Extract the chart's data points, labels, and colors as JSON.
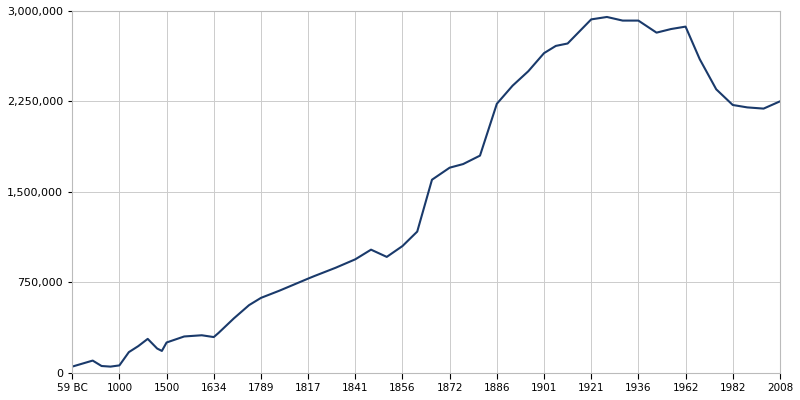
{
  "line_color": "#1a3a6b",
  "background_color": "#ffffff",
  "grid_color": "#cccccc",
  "x_tick_labels": [
    "59 BC",
    "1000",
    "1500",
    "1634",
    "1789",
    "1817",
    "1841",
    "1856",
    "1872",
    "1886",
    "1901",
    "1921",
    "1936",
    "1962",
    "1982",
    "2008"
  ],
  "x_tick_years": [
    -59,
    1000,
    1500,
    1634,
    1789,
    1817,
    1841,
    1856,
    1872,
    1886,
    1901,
    1921,
    1936,
    1962,
    1982,
    2008
  ],
  "y_tick_values": [
    0,
    750000,
    1500000,
    2250000,
    3000000
  ],
  "data_years": [
    -59,
    400,
    600,
    800,
    1000,
    1100,
    1200,
    1300,
    1400,
    1450,
    1500,
    1550,
    1600,
    1634,
    1650,
    1700,
    1750,
    1789,
    1800,
    1817,
    1820,
    1831,
    1841,
    1846,
    1851,
    1856,
    1861,
    1866,
    1872,
    1876,
    1881,
    1886,
    1891,
    1896,
    1901,
    1906,
    1911,
    1921,
    1926,
    1931,
    1936,
    1946,
    1954,
    1962,
    1968,
    1975,
    1982,
    1990,
    1999,
    2008
  ],
  "data_values": [
    50000,
    100000,
    55000,
    50000,
    60000,
    170000,
    220000,
    280000,
    200000,
    180000,
    250000,
    300000,
    310000,
    295000,
    330000,
    450000,
    560000,
    620000,
    680000,
    780000,
    800000,
    870000,
    940000,
    1020000,
    960000,
    1050000,
    1170000,
    1600000,
    1700000,
    1730000,
    1800000,
    2230000,
    2380000,
    2500000,
    2650000,
    2710000,
    2730000,
    2930000,
    2950000,
    2920000,
    2920000,
    2820000,
    2850000,
    2870000,
    2600000,
    2350000,
    2220000,
    2200000,
    2190000,
    2250000
  ]
}
